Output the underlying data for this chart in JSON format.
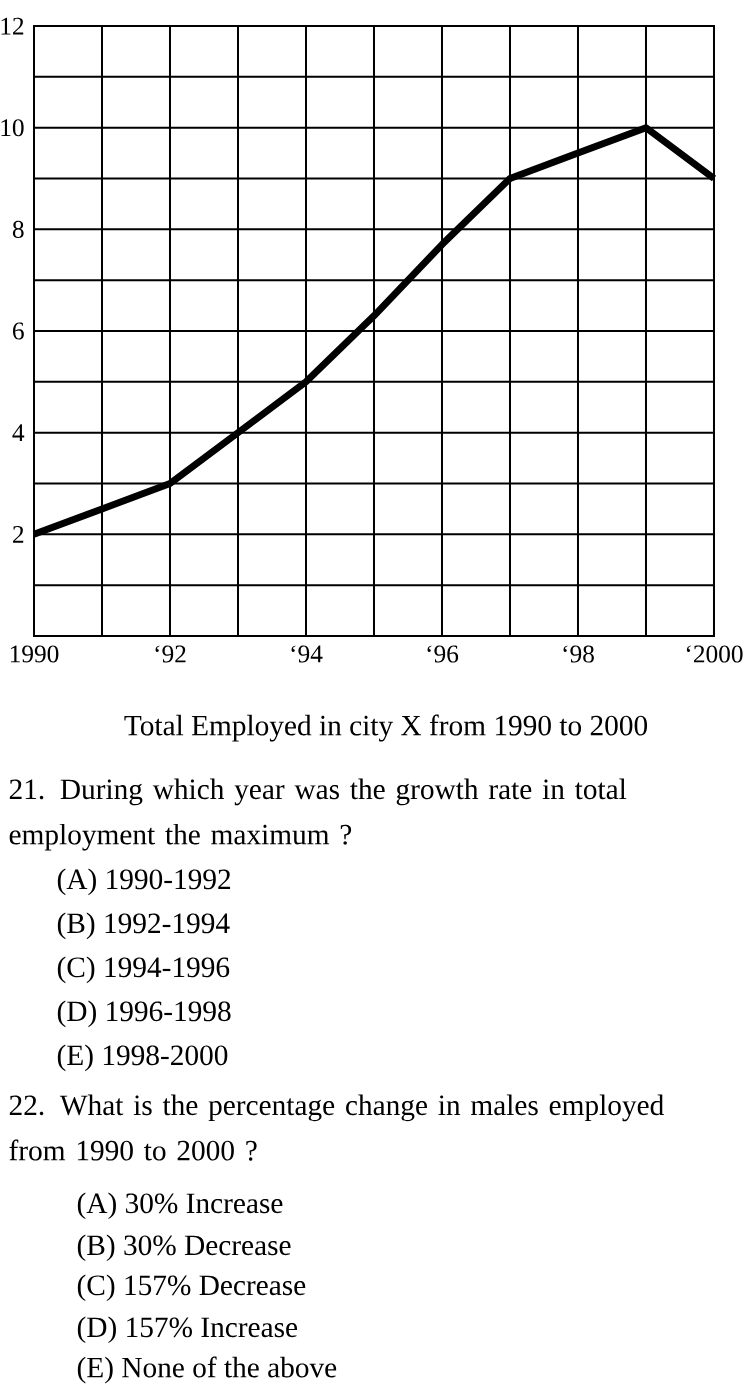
{
  "chart_data": {
    "type": "line",
    "categories": [
      "1990",
      null,
      "‘92",
      null,
      "‘94",
      null,
      "‘96",
      null,
      "‘98",
      null,
      "‘2000"
    ],
    "series": [
      {
        "color": "#000000",
        "values": [
          2,
          2.5,
          3,
          4,
          5,
          6.3,
          7.7,
          9,
          9.5,
          10,
          9
        ]
      }
    ],
    "ylim": [
      0,
      12
    ],
    "yticks": [
      {
        "value": 0,
        "label": null
      },
      {
        "value": 1,
        "label": null
      },
      2,
      {
        "value": 3,
        "label": null
      },
      4,
      {
        "value": 5,
        "label": null
      },
      6,
      {
        "value": 7,
        "label": null
      },
      8,
      {
        "value": 9,
        "label": null
      },
      10,
      {
        "value": 11,
        "label": null
      },
      12
    ],
    "grid": true,
    "annotations": [
      "Total Employed in city X from 1990 to 2000",
      "21. During which year was the growth rate in total employment the maximum ?",
      "(A) 1990-1992",
      "(B) 1992-1994",
      "(C) 1994-1996",
      "(D) 1996-1998",
      "(E) 1998-2000",
      "22. What is the percentage change in males employed from 1990 to 2000 ?",
      "(A) 30% Increase",
      "(B) 30% Decrease",
      "(C) 157% Decrease",
      "(D) 157% Increase",
      "(E) None of the above"
    ]
  }
}
